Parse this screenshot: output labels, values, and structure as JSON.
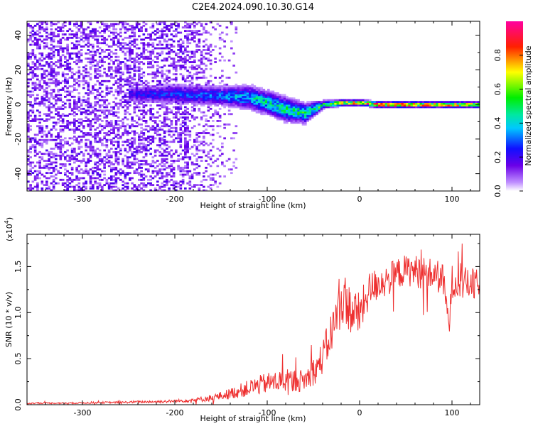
{
  "figure": {
    "title": "C2E4.2024.090.10.30.G14"
  },
  "colors": {
    "snr_line": "#ee3030",
    "colorscale": [
      "#ffffff",
      "#6a00e8",
      "#1010ff",
      "#00e8e8",
      "#00ee00",
      "#ffff00",
      "#ff0000",
      "#ff00aa"
    ]
  },
  "chart_data": [
    {
      "type": "heatmap",
      "title": "C2E4.2024.090.10.30.G14",
      "xlabel": "Height of straight line (km)",
      "ylabel": "Frequency (Hz)",
      "xlim": [
        -360,
        130
      ],
      "ylim": [
        -50,
        48
      ],
      "x_ticks": [
        -300,
        -200,
        -100,
        0,
        100
      ],
      "x_tick_labels": [
        "-300",
        "-200",
        "-100",
        "0",
        "100"
      ],
      "y_ticks": [
        -40,
        -20,
        0,
        20,
        40
      ],
      "y_tick_labels": [
        "-40",
        "-20",
        "0",
        "20",
        "40"
      ],
      "colorbar": {
        "label": "Normalized spectral amplitude",
        "range": [
          0,
          1
        ],
        "ticks": [
          0,
          0.2,
          0.4,
          0.6,
          0.8
        ],
        "tick_labels": [
          "0.0",
          "0.2",
          "0.4",
          "0.6",
          "0.8"
        ]
      },
      "ridge": {
        "x": [
          -250,
          -200,
          -150,
          -120,
          -100,
          -80,
          -60,
          -40,
          -20,
          0,
          20,
          60,
          100,
          130
        ],
        "center_hz": [
          6,
          6,
          5,
          4,
          1,
          -3,
          -5,
          0,
          1,
          1,
          0,
          0,
          0,
          0
        ],
        "halfwidth_hz": [
          4,
          5,
          5,
          6,
          6,
          6,
          5,
          2,
          1.5,
          1.5,
          1.5,
          1.5,
          1.5,
          1.5
        ],
        "peak_amplitude": [
          0.25,
          0.3,
          0.35,
          0.45,
          0.5,
          0.55,
          0.55,
          0.6,
          0.85,
          0.9,
          0.95,
          0.9,
          0.9,
          0.8
        ]
      },
      "noise_region_x": [
        -360,
        -190
      ],
      "grid": false
    },
    {
      "type": "line",
      "xlabel": "Height of straight line (km)",
      "ylabel": "SNR (10 * v/v)",
      "y_multiplier": "(x10",
      "y_multiplier_exp": "4",
      "y_multiplier_close": ")",
      "xlim": [
        -360,
        130
      ],
      "ylim": [
        0,
        18500
      ],
      "x_ticks": [
        -300,
        -200,
        -100,
        0,
        100
      ],
      "x_tick_labels": [
        "-300",
        "-200",
        "-100",
        "0",
        "100"
      ],
      "y_ticks": [
        0,
        5000,
        10000,
        15000
      ],
      "y_tick_labels": [
        "0.0",
        "0.5",
        "1.0",
        "1.5"
      ],
      "series": [
        {
          "x": [
            -360,
            -340,
            -320,
            -300,
            -280,
            -260,
            -240,
            -220,
            -200,
            -190,
            -180,
            -170,
            -160,
            -150,
            -140,
            -130,
            -120,
            -110,
            -100,
            -90,
            -80,
            -70,
            -60,
            -50,
            -45,
            -40,
            -35,
            -30,
            -25,
            -20,
            -15,
            -10,
            -5,
            0,
            5,
            10,
            15,
            20,
            30,
            40,
            50,
            60,
            70,
            80,
            90,
            97,
            100,
            110,
            120,
            130
          ],
          "values": [
            150,
            180,
            170,
            200,
            230,
            250,
            300,
            330,
            380,
            450,
            520,
            600,
            750,
            950,
            1200,
            1500,
            1800,
            2100,
            2350,
            2500,
            2600,
            2650,
            2600,
            3600,
            4200,
            5200,
            6500,
            8000,
            9600,
            11000,
            11600,
            10200,
            10000,
            9800,
            11000,
            12400,
            12800,
            13200,
            13500,
            14200,
            14600,
            14500,
            14300,
            14100,
            13700,
            8500,
            13400,
            13200,
            13100,
            12800
          ],
          "noise_amplitude": [
            80,
            80,
            80,
            90,
            100,
            110,
            130,
            150,
            180,
            200,
            250,
            300,
            380,
            480,
            600,
            750,
            900,
            1050,
            1150,
            1200,
            1250,
            1250,
            1200,
            1500,
            1700,
            1900,
            2100,
            2300,
            2500,
            2600,
            2600,
            2800,
            2600,
            2400,
            2200,
            2000,
            1900,
            1900,
            1800,
            1700,
            1700,
            1800,
            1800,
            1800,
            1800,
            1200,
            1800,
            1800,
            1800,
            1800
          ]
        }
      ],
      "grid": false
    }
  ]
}
